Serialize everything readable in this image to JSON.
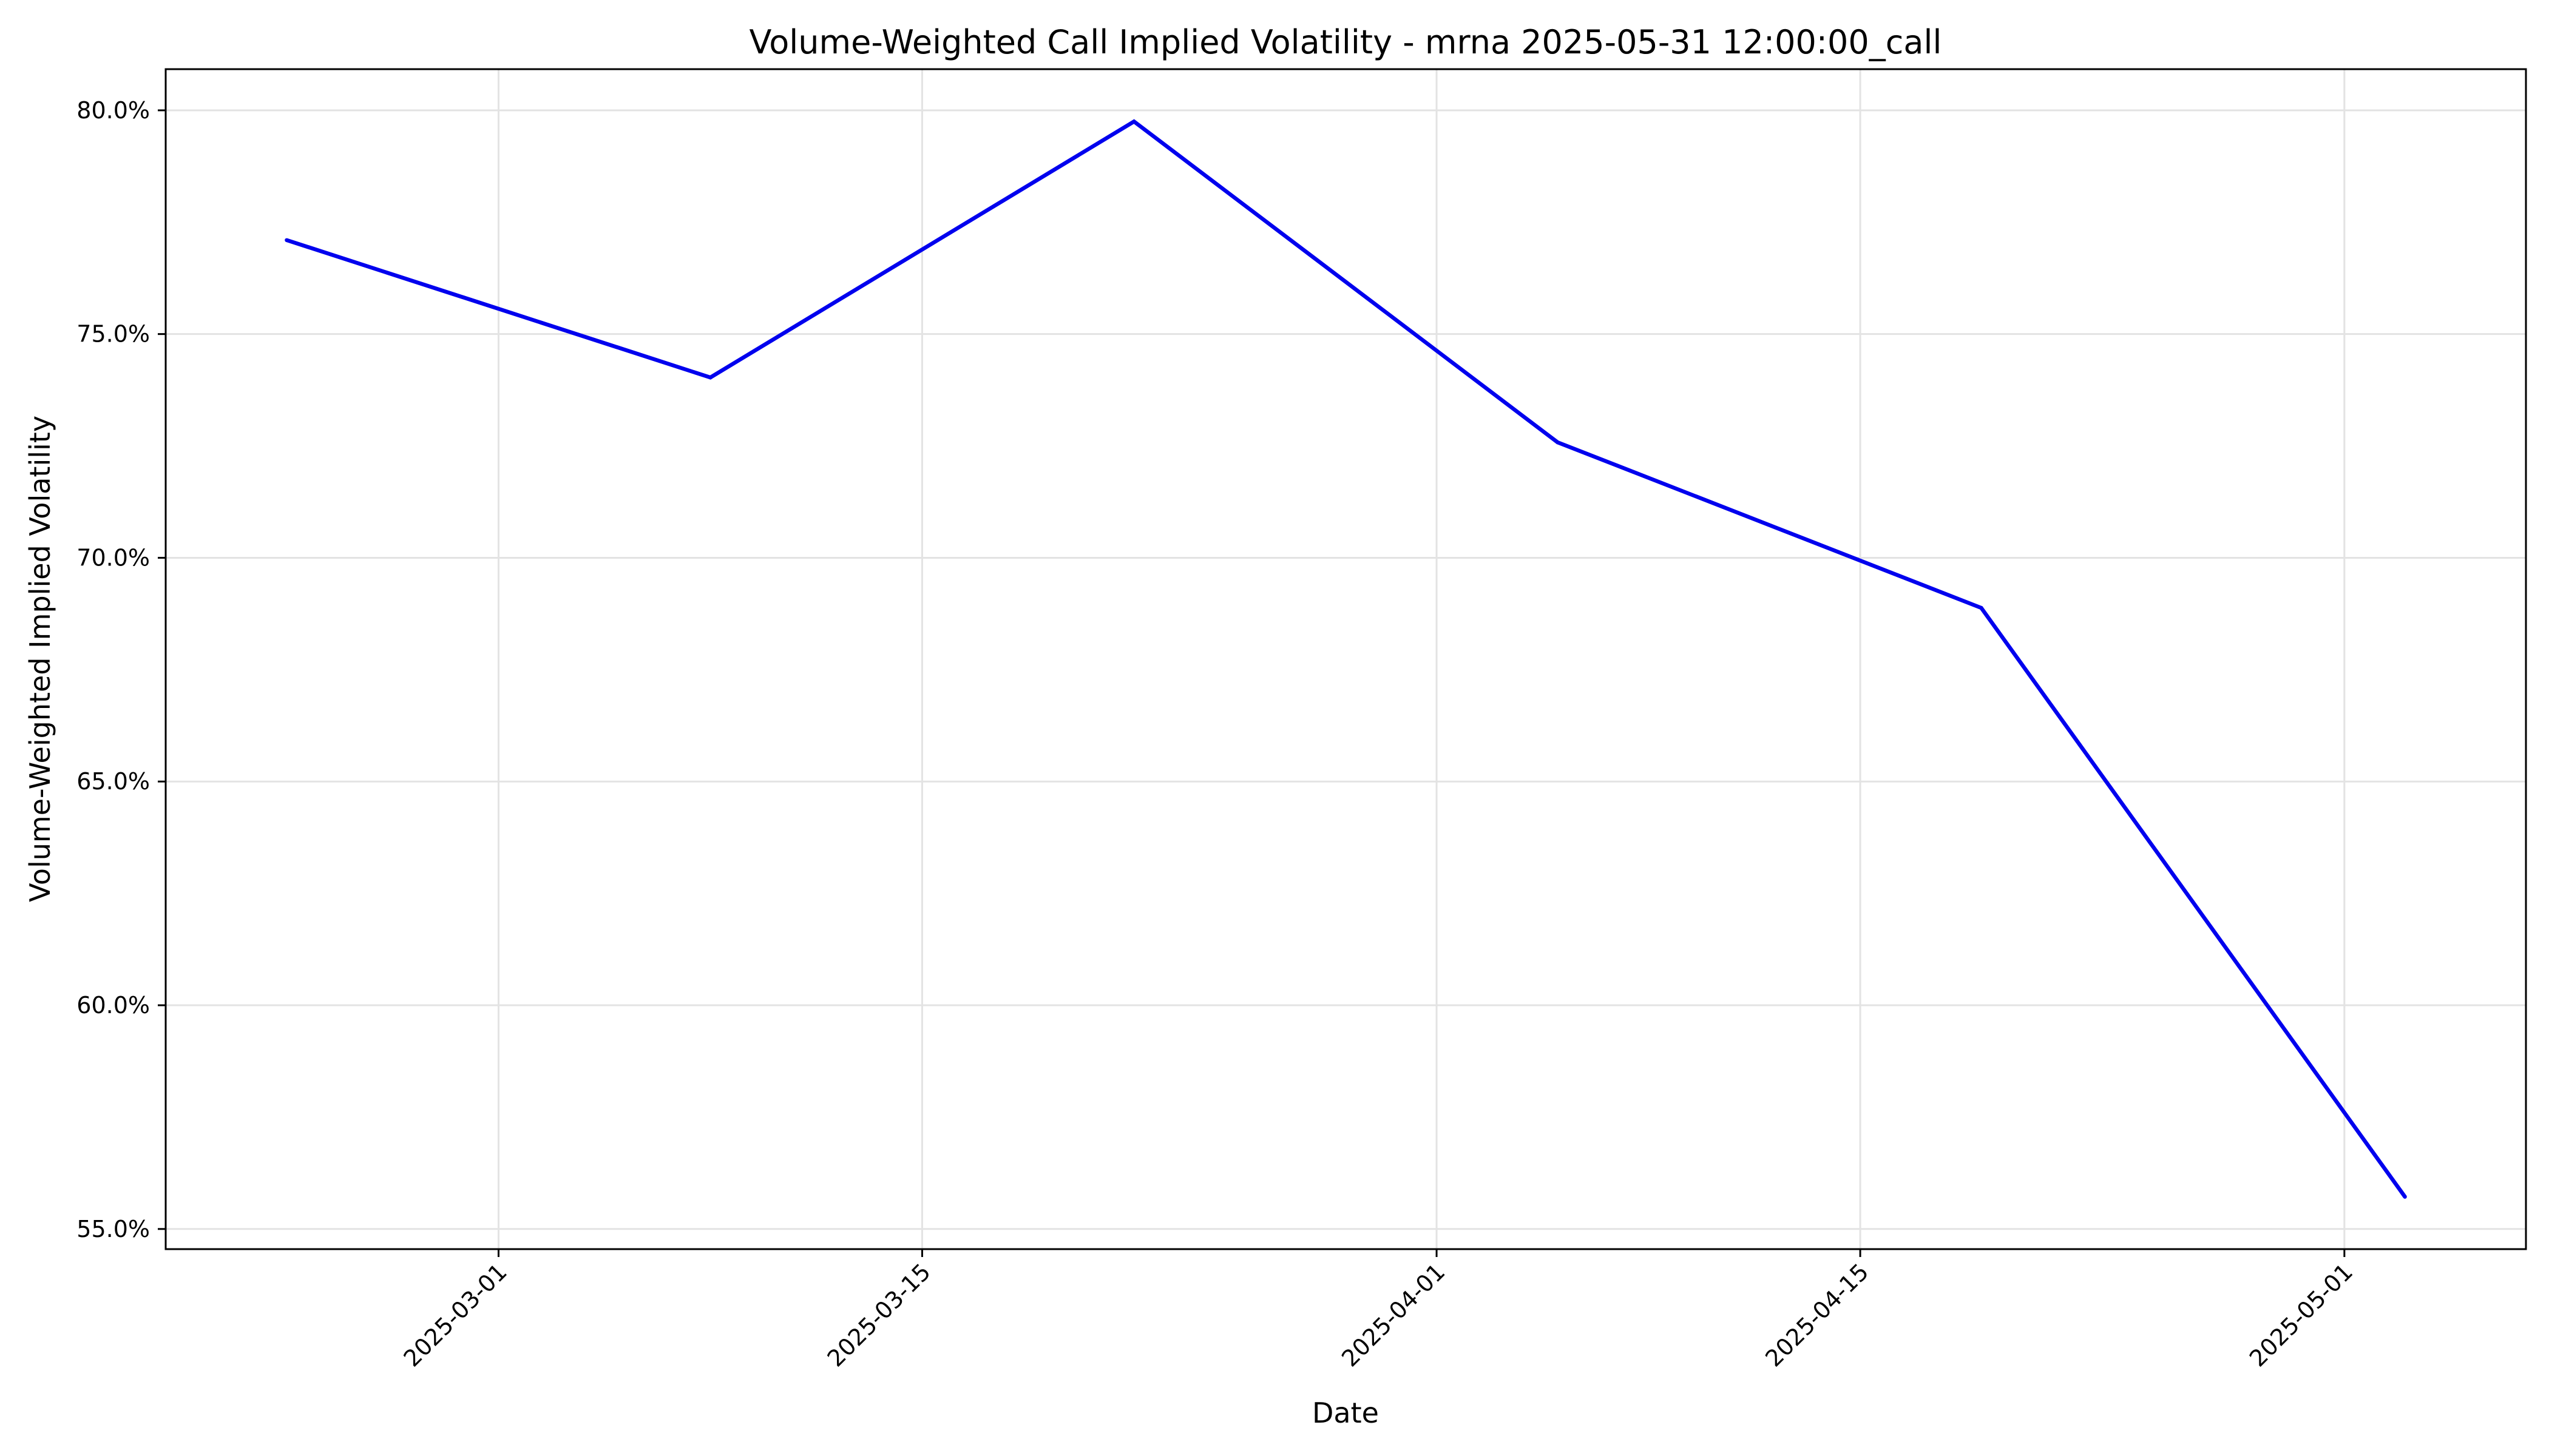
{
  "chart_data": {
    "type": "line",
    "title": "Volume-Weighted Call Implied Volatility - mrna 2025-05-31 12:00:00_call",
    "xlabel": "Date",
    "ylabel": "Volume-Weighted Implied Volatility",
    "x_ticks": [
      "2025-03-01",
      "2025-03-15",
      "2025-04-01",
      "2025-04-15",
      "2025-05-01"
    ],
    "y_ticks": [
      0.55,
      0.6,
      0.65,
      0.7,
      0.75,
      0.8
    ],
    "y_tick_labels": [
      "55.0%",
      "60.0%",
      "65.0%",
      "70.0%",
      "75.0%",
      "80.0%"
    ],
    "xlim": [
      "2025-02-18",
      "2025-05-07"
    ],
    "ylim": [
      0.5455,
      0.8092
    ],
    "grid": true,
    "series": [
      {
        "color": "#0000ee",
        "x": [
          "2025-02-22",
          "2025-03-08",
          "2025-03-22",
          "2025-04-05",
          "2025-04-19",
          "2025-05-03"
        ],
        "y": [
          0.771,
          0.7403,
          0.7975,
          0.7258,
          0.6888,
          0.5572
        ]
      }
    ]
  }
}
